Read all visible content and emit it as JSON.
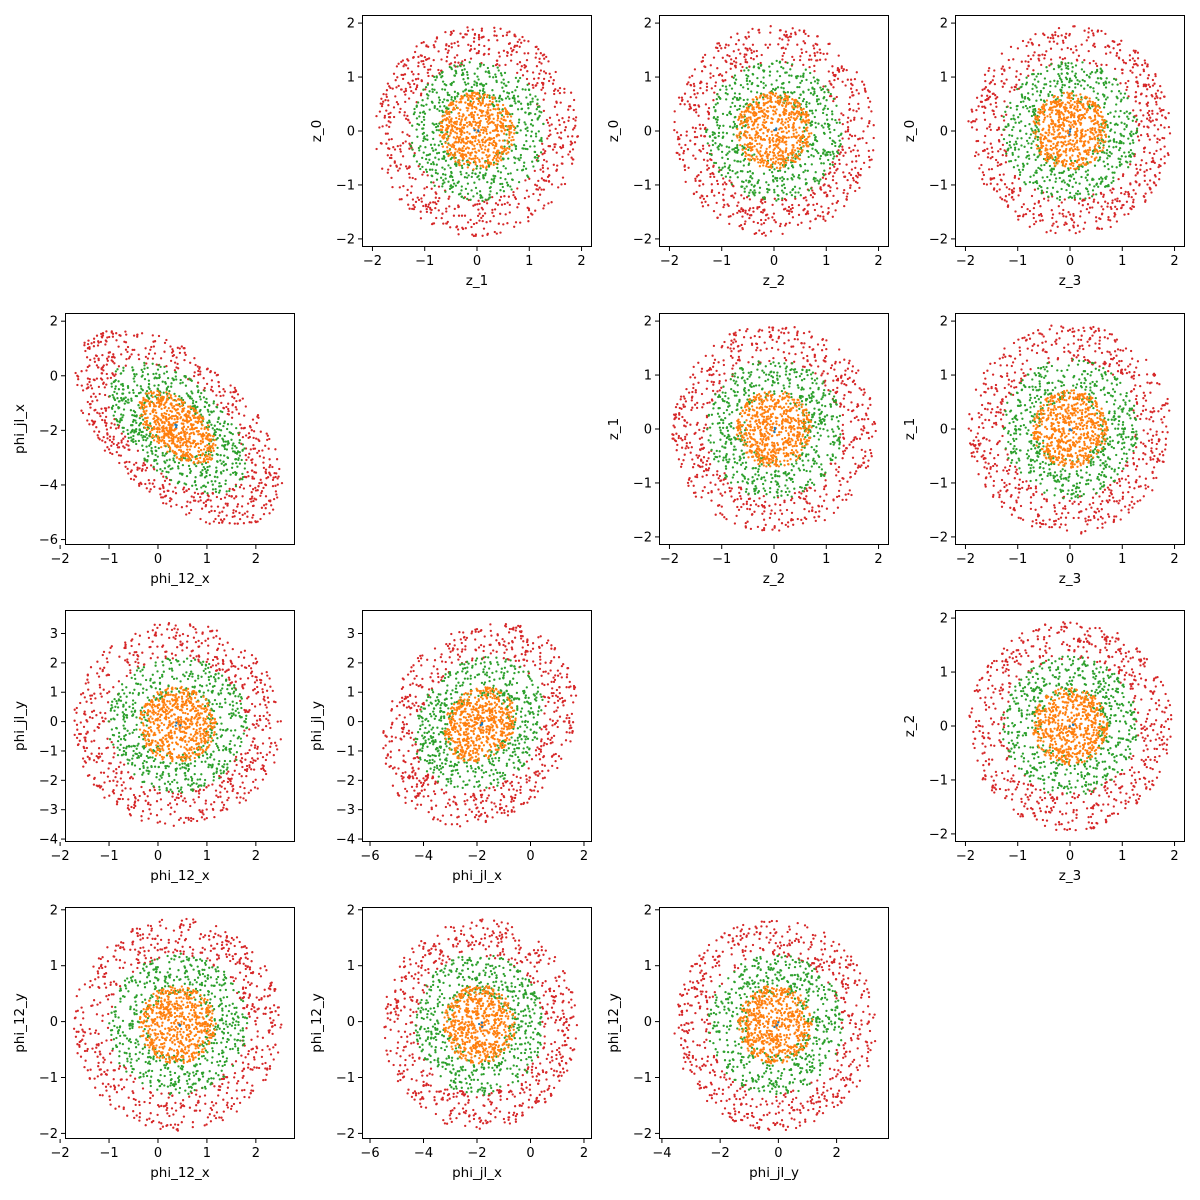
{
  "colors": {
    "red": "#d62728",
    "green": "#2ca02c",
    "orange": "#ff7f0e",
    "blue": "#1f77b4",
    "frame": "#000000"
  },
  "chart_data": [
    {
      "id": "z_1-vs-z_0",
      "type": "scatter",
      "xlabel": "z_1",
      "ylabel": "z_0",
      "xlim": [
        -2.2,
        2.2
      ],
      "ylim": [
        -2.15,
        2.15
      ],
      "xticks": [
        -2,
        -1,
        0,
        1,
        2
      ],
      "yticks": [
        -2,
        -1,
        0,
        1,
        2
      ],
      "center": [
        0,
        0
      ],
      "cov": [
        1,
        0,
        1
      ],
      "rings": [
        {
          "color": "red",
          "rmin": 1.25,
          "rmax": 1.95,
          "n": 650
        },
        {
          "color": "green",
          "rmin": 0.55,
          "rmax": 1.3,
          "n": 600
        },
        {
          "color": "orange",
          "rmin": 0,
          "rmax": 0.72,
          "n": 600
        },
        {
          "color": "blue",
          "rmin": 0,
          "rmax": 0.07,
          "n": 3
        }
      ]
    },
    {
      "id": "z_2-vs-z_0",
      "type": "scatter",
      "xlabel": "z_2",
      "ylabel": "z_0",
      "xlim": [
        -2.2,
        2.2
      ],
      "ylim": [
        -2.15,
        2.15
      ],
      "xticks": [
        -2,
        -1,
        0,
        1,
        2
      ],
      "yticks": [
        -2,
        -1,
        0,
        1,
        2
      ],
      "center": [
        0,
        0
      ],
      "cov": [
        1,
        0,
        1
      ],
      "rings": [
        {
          "color": "red",
          "rmin": 1.25,
          "rmax": 1.95,
          "n": 650
        },
        {
          "color": "green",
          "rmin": 0.55,
          "rmax": 1.3,
          "n": 600
        },
        {
          "color": "orange",
          "rmin": 0,
          "rmax": 0.72,
          "n": 600
        },
        {
          "color": "blue",
          "rmin": 0,
          "rmax": 0.07,
          "n": 3
        }
      ]
    },
    {
      "id": "z_3-vs-z_0",
      "type": "scatter",
      "xlabel": "z_3",
      "ylabel": "z_0",
      "xlim": [
        -2.2,
        2.2
      ],
      "ylim": [
        -2.15,
        2.15
      ],
      "xticks": [
        -2,
        -1,
        0,
        1,
        2
      ],
      "yticks": [
        -2,
        -1,
        0,
        1,
        2
      ],
      "center": [
        0,
        0
      ],
      "cov": [
        1,
        0,
        1
      ],
      "rings": [
        {
          "color": "red",
          "rmin": 1.25,
          "rmax": 1.95,
          "n": 650
        },
        {
          "color": "green",
          "rmin": 0.55,
          "rmax": 1.3,
          "n": 600
        },
        {
          "color": "orange",
          "rmin": 0,
          "rmax": 0.72,
          "n": 600
        },
        {
          "color": "blue",
          "rmin": 0,
          "rmax": 0.07,
          "n": 3
        }
      ]
    },
    {
      "id": "phi_12_x-vs-phi_jl_x",
      "type": "scatter",
      "xlabel": "phi_12_x",
      "ylabel": "phi_jl_x",
      "xlim": [
        -1.9,
        2.8
      ],
      "ylim": [
        -6.2,
        2.3
      ],
      "xticks": [
        -2,
        -1,
        0,
        1,
        2
      ],
      "yticks": [
        -6,
        -4,
        -2,
        0,
        2
      ],
      "center": [
        0.4,
        -1.9
      ],
      "cov": [
        1.2,
        -1.1,
        3.5
      ],
      "rings": [
        {
          "color": "red",
          "rmin": 1.25,
          "rmax": 1.95,
          "n": 650
        },
        {
          "color": "green",
          "rmin": 0.55,
          "rmax": 1.3,
          "n": 600
        },
        {
          "color": "orange",
          "rmin": 0,
          "rmax": 0.72,
          "n": 600
        },
        {
          "color": "blue",
          "rmin": 0,
          "rmax": 0.07,
          "n": 3
        }
      ]
    },
    {
      "id": "z_2-vs-z_1",
      "type": "scatter",
      "xlabel": "z_2",
      "ylabel": "z_1",
      "xlim": [
        -2.2,
        2.2
      ],
      "ylim": [
        -2.15,
        2.15
      ],
      "xticks": [
        -2,
        -1,
        0,
        1,
        2
      ],
      "yticks": [
        -2,
        -1,
        0,
        1,
        2
      ],
      "center": [
        0,
        0
      ],
      "cov": [
        1,
        0,
        1
      ],
      "rings": [
        {
          "color": "red",
          "rmin": 1.25,
          "rmax": 1.95,
          "n": 650
        },
        {
          "color": "green",
          "rmin": 0.55,
          "rmax": 1.3,
          "n": 600
        },
        {
          "color": "orange",
          "rmin": 0,
          "rmax": 0.72,
          "n": 600
        },
        {
          "color": "blue",
          "rmin": 0,
          "rmax": 0.07,
          "n": 3
        }
      ]
    },
    {
      "id": "z_3-vs-z_1",
      "type": "scatter",
      "xlabel": "z_3",
      "ylabel": "z_1",
      "xlim": [
        -2.2,
        2.2
      ],
      "ylim": [
        -2.15,
        2.15
      ],
      "xticks": [
        -2,
        -1,
        0,
        1,
        2
      ],
      "yticks": [
        -2,
        -1,
        0,
        1,
        2
      ],
      "center": [
        0,
        0
      ],
      "cov": [
        1,
        0,
        1
      ],
      "rings": [
        {
          "color": "red",
          "rmin": 1.25,
          "rmax": 1.95,
          "n": 650
        },
        {
          "color": "green",
          "rmin": 0.55,
          "rmax": 1.3,
          "n": 600
        },
        {
          "color": "orange",
          "rmin": 0,
          "rmax": 0.72,
          "n": 600
        },
        {
          "color": "blue",
          "rmin": 0,
          "rmax": 0.07,
          "n": 3
        }
      ]
    },
    {
      "id": "phi_12_x-vs-phi_jl_y",
      "type": "scatter",
      "xlabel": "phi_12_x",
      "ylabel": "phi_jl_y",
      "xlim": [
        -1.9,
        2.8
      ],
      "ylim": [
        -4.1,
        3.8
      ],
      "xticks": [
        -2,
        -1,
        0,
        1,
        2
      ],
      "yticks": [
        -4,
        -3,
        -2,
        -1,
        0,
        1,
        2,
        3
      ],
      "center": [
        0.4,
        -0.1
      ],
      "cov": [
        1.2,
        0,
        3.2
      ],
      "rings": [
        {
          "color": "red",
          "rmin": 1.25,
          "rmax": 1.95,
          "n": 650
        },
        {
          "color": "green",
          "rmin": 0.55,
          "rmax": 1.3,
          "n": 600
        },
        {
          "color": "orange",
          "rmin": 0,
          "rmax": 0.72,
          "n": 600
        },
        {
          "color": "blue",
          "rmin": 0,
          "rmax": 0.07,
          "n": 3
        }
      ]
    },
    {
      "id": "phi_jl_x-vs-phi_jl_y",
      "type": "scatter",
      "xlabel": "phi_jl_x",
      "ylabel": "phi_jl_y",
      "xlim": [
        -6.3,
        2.3
      ],
      "ylim": [
        -4.1,
        3.8
      ],
      "xticks": [
        -6,
        -4,
        -2,
        0,
        2
      ],
      "yticks": [
        -4,
        -3,
        -2,
        -1,
        0,
        1,
        2,
        3
      ],
      "center": [
        -1.9,
        -0.1
      ],
      "cov": [
        3.5,
        0.6,
        3.2
      ],
      "rings": [
        {
          "color": "red",
          "rmin": 1.25,
          "rmax": 1.95,
          "n": 650
        },
        {
          "color": "green",
          "rmin": 0.55,
          "rmax": 1.3,
          "n": 600
        },
        {
          "color": "orange",
          "rmin": 0,
          "rmax": 0.72,
          "n": 600
        },
        {
          "color": "blue",
          "rmin": 0,
          "rmax": 0.07,
          "n": 3
        }
      ]
    },
    {
      "id": "z_3-vs-z_2",
      "type": "scatter",
      "xlabel": "z_3",
      "ylabel": "z_2",
      "xlim": [
        -2.2,
        2.2
      ],
      "ylim": [
        -2.15,
        2.15
      ],
      "xticks": [
        -2,
        -1,
        0,
        1,
        2
      ],
      "yticks": [
        -2,
        -1,
        0,
        1,
        2
      ],
      "center": [
        0,
        0
      ],
      "cov": [
        1,
        0,
        1
      ],
      "rings": [
        {
          "color": "red",
          "rmin": 1.25,
          "rmax": 1.95,
          "n": 650
        },
        {
          "color": "green",
          "rmin": 0.55,
          "rmax": 1.3,
          "n": 600
        },
        {
          "color": "orange",
          "rmin": 0,
          "rmax": 0.72,
          "n": 600
        },
        {
          "color": "blue",
          "rmin": 0,
          "rmax": 0.07,
          "n": 3
        }
      ]
    },
    {
      "id": "phi_12_x-vs-phi_12_y",
      "type": "scatter",
      "xlabel": "phi_12_x",
      "ylabel": "phi_12_y",
      "xlim": [
        -1.9,
        2.8
      ],
      "ylim": [
        -2.1,
        2.05
      ],
      "xticks": [
        -2,
        -1,
        0,
        1,
        2
      ],
      "yticks": [
        -2,
        -1,
        0,
        1,
        2
      ],
      "center": [
        0.4,
        -0.05
      ],
      "cov": [
        1.2,
        0,
        0.95
      ],
      "rings": [
        {
          "color": "red",
          "rmin": 1.25,
          "rmax": 1.95,
          "n": 650
        },
        {
          "color": "green",
          "rmin": 0.55,
          "rmax": 1.3,
          "n": 600
        },
        {
          "color": "orange",
          "rmin": 0,
          "rmax": 0.72,
          "n": 600
        },
        {
          "color": "blue",
          "rmin": 0,
          "rmax": 0.07,
          "n": 3
        }
      ]
    },
    {
      "id": "phi_jl_x-vs-phi_12_y",
      "type": "scatter",
      "xlabel": "phi_jl_x",
      "ylabel": "phi_12_y",
      "xlim": [
        -6.3,
        2.3
      ],
      "ylim": [
        -2.1,
        2.05
      ],
      "xticks": [
        -6,
        -4,
        -2,
        0,
        2
      ],
      "yticks": [
        -2,
        -1,
        0,
        1,
        2
      ],
      "center": [
        -1.9,
        -0.05
      ],
      "cov": [
        3.5,
        0,
        0.95
      ],
      "rings": [
        {
          "color": "red",
          "rmin": 1.25,
          "rmax": 1.95,
          "n": 650
        },
        {
          "color": "green",
          "rmin": 0.55,
          "rmax": 1.3,
          "n": 600
        },
        {
          "color": "orange",
          "rmin": 0,
          "rmax": 0.72,
          "n": 600
        },
        {
          "color": "blue",
          "rmin": 0,
          "rmax": 0.07,
          "n": 3
        }
      ]
    },
    {
      "id": "phi_jl_y-vs-phi_12_y",
      "type": "scatter",
      "xlabel": "phi_jl_y",
      "ylabel": "phi_12_y",
      "xlim": [
        -4.1,
        3.8
      ],
      "ylim": [
        -2.1,
        2.05
      ],
      "xticks": [
        -4,
        -2,
        0,
        2
      ],
      "yticks": [
        -2,
        -1,
        0,
        1,
        2
      ],
      "center": [
        -0.1,
        -0.05
      ],
      "cov": [
        3.2,
        0,
        0.95
      ],
      "rings": [
        {
          "color": "red",
          "rmin": 1.25,
          "rmax": 1.95,
          "n": 650
        },
        {
          "color": "green",
          "rmin": 0.55,
          "rmax": 1.3,
          "n": 600
        },
        {
          "color": "orange",
          "rmin": 0,
          "rmax": 0.72,
          "n": 600
        },
        {
          "color": "blue",
          "rmin": 0,
          "rmax": 0.07,
          "n": 3
        }
      ]
    }
  ]
}
